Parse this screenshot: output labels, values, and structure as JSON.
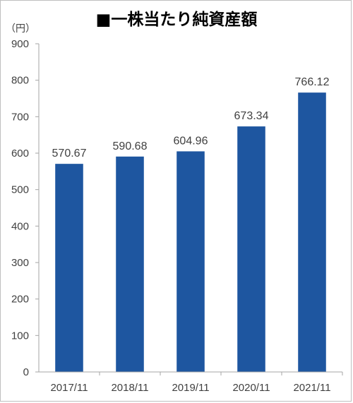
{
  "chart_data": {
    "type": "bar",
    "title": "■一株当たり純資産額",
    "unit_label": "（円）",
    "categories": [
      "2017/11",
      "2018/11",
      "2019/11",
      "2020/11",
      "2021/11"
    ],
    "values": [
      570.67,
      590.68,
      604.96,
      673.34,
      766.12
    ],
    "value_labels": [
      "570.67",
      "590.68",
      "604.96",
      "673.34",
      "766.12"
    ],
    "ylim": [
      0,
      900
    ],
    "yticks": [
      0,
      100,
      200,
      300,
      400,
      500,
      600,
      700,
      800,
      900
    ],
    "grid": false,
    "bar_color": "#1e56a0",
    "axis_color": "#a6a6a6",
    "xlabel": "",
    "ylabel": ""
  }
}
